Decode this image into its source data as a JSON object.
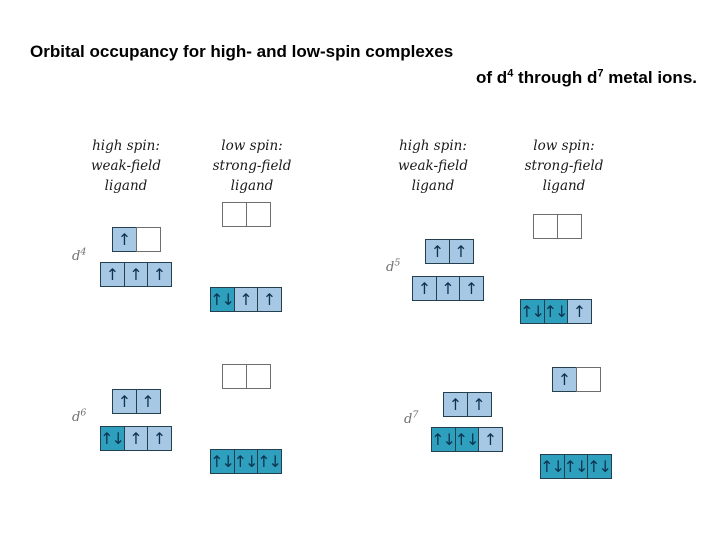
{
  "title": {
    "line1": "Orbital occupancy for high- and low-spin complexes",
    "line2": {
      "pre": "of d",
      "sup1": "4",
      "mid": " through d",
      "sup2": "7",
      "post": " metal ions."
    }
  },
  "headers": [
    {
      "lines": [
        "high spin:",
        "weak-field",
        "ligand"
      ]
    },
    {
      "lines": [
        "low spin:",
        "strong-field",
        "ligand"
      ]
    },
    {
      "lines": [
        "high spin:",
        "weak-field",
        "ligand"
      ]
    },
    {
      "lines": [
        "low spin:",
        "strong-field",
        "ligand"
      ]
    }
  ],
  "colors": {
    "single_electron_box": "#a6c8e4",
    "paired_electron_box": "#2f9fbe",
    "empty_box": "#ffffff",
    "arrow": "#0d3350",
    "filled_box_border": "#24404e",
    "empty_box_border": "#6e6e6e",
    "label_gray": "#6f6f6f"
  },
  "arrow_glyphs": {
    "up": "↑",
    "updown": "↑↓"
  },
  "diagrams": [
    {
      "label_base": "d",
      "label_sup": "4",
      "high_spin": {
        "eg": [
          "up",
          "empty"
        ],
        "t2g": [
          "up",
          "up",
          "up"
        ]
      },
      "low_spin": {
        "eg": [
          "empty",
          "empty"
        ],
        "t2g": [
          "updown",
          "up",
          "up"
        ]
      }
    },
    {
      "label_base": "d",
      "label_sup": "5",
      "high_spin": {
        "eg": [
          "up",
          "up"
        ],
        "t2g": [
          "up",
          "up",
          "up"
        ]
      },
      "low_spin": {
        "eg": [
          "empty",
          "empty"
        ],
        "t2g": [
          "updown",
          "updown",
          "up"
        ]
      }
    },
    {
      "label_base": "d",
      "label_sup": "6",
      "high_spin": {
        "eg": [
          "up",
          "up"
        ],
        "t2g": [
          "updown",
          "up",
          "up"
        ]
      },
      "low_spin": {
        "eg": [
          "empty",
          "empty"
        ],
        "t2g": [
          "updown",
          "updown",
          "updown"
        ]
      }
    },
    {
      "label_base": "d",
      "label_sup": "7",
      "high_spin": {
        "eg": [
          "up",
          "up"
        ],
        "t2g": [
          "updown",
          "updown",
          "up"
        ]
      },
      "low_spin": {
        "eg": [
          "up",
          "empty"
        ],
        "t2g": [
          "updown",
          "updown",
          "updown"
        ]
      }
    }
  ]
}
